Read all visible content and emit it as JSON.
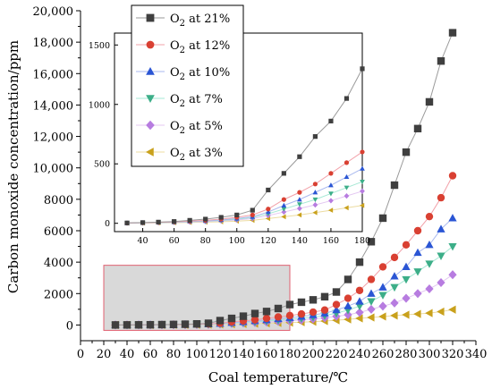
{
  "chart_data": [
    {
      "type": "line",
      "name_role": "main",
      "xlabel": "Coal temperature/℃",
      "ylabel": "Carbon monoxide concentration/ppm",
      "xlim": [
        0,
        340
      ],
      "ylim": [
        -1000,
        20000
      ],
      "xticks": [
        "0",
        "20",
        "40",
        "60",
        "80",
        "100",
        "120",
        "140",
        "160",
        "180",
        "200",
        "220",
        "240",
        "260",
        "280",
        "300",
        "320",
        "340"
      ],
      "yticks": [
        "0",
        "2000",
        "4000",
        "6000",
        "8000",
        "10,000",
        "12,000",
        "14,000",
        "16,000",
        "18,000",
        "20,000"
      ],
      "x": [
        30,
        40,
        50,
        60,
        70,
        80,
        90,
        100,
        110,
        120,
        130,
        140,
        150,
        160,
        170,
        180,
        190,
        200,
        210,
        220,
        230,
        240,
        250,
        260,
        270,
        280,
        290,
        300,
        310,
        320
      ],
      "highlight_region": {
        "x": [
          20,
          180
        ],
        "y": [
          0,
          3800
        ],
        "color": "#d9d9d9",
        "border": "#e06070"
      },
      "series": [
        {
          "name": "O2 at 21%",
          "marker": "square",
          "color": "#3f3f3f",
          "line": "#9a9a9a",
          "values": [
            3,
            6,
            10,
            15,
            25,
            35,
            50,
            70,
            110,
            280,
            420,
            560,
            730,
            860,
            1050,
            1300,
            1450,
            1600,
            1800,
            2100,
            2900,
            4000,
            5300,
            6800,
            8900,
            11000,
            12500,
            14200,
            16800,
            18600
          ]
        },
        {
          "name": "O2 at 12%",
          "marker": "circle",
          "color": "#d94032",
          "line": "#f2a0a8",
          "values": [
            2,
            4,
            8,
            12,
            18,
            25,
            35,
            50,
            70,
            120,
            200,
            260,
            330,
            420,
            510,
            600,
            700,
            820,
            950,
            1300,
            1700,
            2200,
            2900,
            3700,
            4300,
            5100,
            6000,
            6900,
            8100,
            9500
          ]
        },
        {
          "name": "O2 at 10%",
          "marker": "triangle-up",
          "color": "#2a55d4",
          "line": "#a9b9ef",
          "values": [
            2,
            4,
            7,
            10,
            15,
            20,
            28,
            40,
            55,
            95,
            150,
            200,
            260,
            320,
            390,
            460,
            540,
            640,
            750,
            950,
            1200,
            1500,
            2000,
            2400,
            3100,
            3700,
            4600,
            5100,
            6100,
            6800
          ]
        },
        {
          "name": "O2 at 7%",
          "marker": "triangle-down",
          "color": "#3cae88",
          "line": "#a5e8d4",
          "values": [
            2,
            3,
            6,
            9,
            13,
            18,
            24,
            34,
            48,
            80,
            120,
            160,
            200,
            250,
            300,
            350,
            420,
            500,
            600,
            750,
            950,
            1200,
            1500,
            1900,
            2400,
            2900,
            3400,
            3900,
            4400,
            5000
          ]
        },
        {
          "name": "O2 at 5%",
          "marker": "diamond",
          "color": "#b77ce0",
          "line": "#e4c7f2",
          "values": [
            1,
            3,
            5,
            8,
            11,
            15,
            20,
            28,
            40,
            65,
            95,
            125,
            155,
            190,
            230,
            270,
            320,
            380,
            450,
            550,
            650,
            800,
            1000,
            1200,
            1400,
            1700,
            2000,
            2300,
            2700,
            3200
          ]
        },
        {
          "name": "O2 at 3%",
          "marker": "triangle-left",
          "color": "#c9a11c",
          "line": "#ecdca2",
          "values": [
            1,
            2,
            3,
            5,
            7,
            10,
            13,
            18,
            25,
            40,
            55,
            70,
            90,
            110,
            130,
            150,
            180,
            210,
            250,
            300,
            360,
            420,
            480,
            540,
            600,
            650,
            700,
            760,
            850,
            980
          ]
        }
      ]
    },
    {
      "type": "line",
      "name_role": "inset",
      "xlim": [
        22,
        180
      ],
      "ylim": [
        -70,
        1600
      ],
      "xticks": [
        "40",
        "60",
        "80",
        "100",
        "120",
        "140",
        "160",
        "180"
      ],
      "yticks": [
        "0",
        "500",
        "1000",
        "1500"
      ],
      "x": [
        30,
        40,
        50,
        60,
        70,
        80,
        90,
        100,
        110,
        120,
        130,
        140,
        150,
        160,
        170,
        180
      ],
      "series": [
        {
          "name": "O2 at 21%",
          "values": [
            3,
            6,
            10,
            15,
            25,
            35,
            50,
            70,
            110,
            280,
            420,
            560,
            730,
            860,
            1050,
            1300
          ]
        },
        {
          "name": "O2 at 12%",
          "values": [
            2,
            4,
            8,
            12,
            18,
            25,
            35,
            50,
            70,
            120,
            200,
            260,
            330,
            420,
            510,
            600
          ]
        },
        {
          "name": "O2 at 10%",
          "values": [
            2,
            4,
            7,
            10,
            15,
            20,
            28,
            40,
            55,
            95,
            150,
            200,
            260,
            320,
            390,
            460
          ]
        },
        {
          "name": "O2 at 7%",
          "values": [
            2,
            3,
            6,
            9,
            13,
            18,
            24,
            34,
            48,
            80,
            120,
            160,
            200,
            250,
            300,
            350
          ]
        },
        {
          "name": "O2 at 5%",
          "values": [
            1,
            3,
            5,
            8,
            11,
            15,
            20,
            28,
            40,
            65,
            95,
            125,
            155,
            190,
            230,
            270
          ]
        },
        {
          "name": "O2 at 3%",
          "values": [
            1,
            2,
            3,
            5,
            7,
            10,
            13,
            18,
            25,
            40,
            55,
            70,
            90,
            110,
            130,
            150
          ]
        }
      ]
    }
  ],
  "legend": {
    "placement": "top-left",
    "items": [
      {
        "prefix": "O",
        "sub": "2",
        "suffix": " at 21%"
      },
      {
        "prefix": "O",
        "sub": "2",
        "suffix": " at 12%"
      },
      {
        "prefix": "O",
        "sub": "2",
        "suffix": " at 10%"
      },
      {
        "prefix": "O",
        "sub": "2",
        "suffix": " at 7%"
      },
      {
        "prefix": "O",
        "sub": "2",
        "suffix": " at 5%"
      },
      {
        "prefix": "O",
        "sub": "2",
        "suffix": " at 3%"
      }
    ]
  }
}
